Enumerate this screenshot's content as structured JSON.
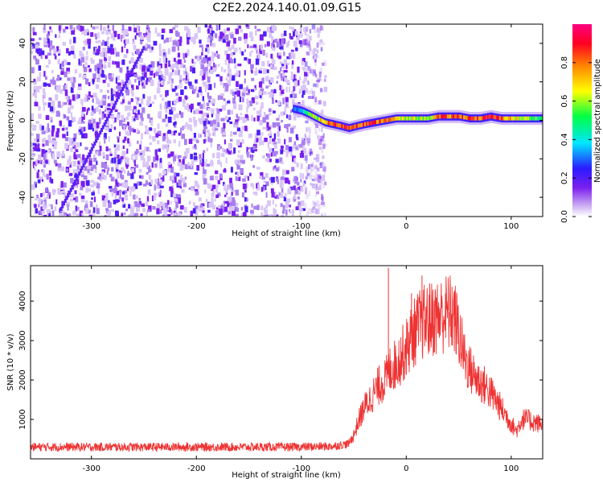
{
  "title": "C2E2.2024.140.01.09.G15",
  "chart_data": [
    {
      "type": "heatmap",
      "xlabel": "Height of straight line (km)",
      "ylabel": "Frequency (Hz)",
      "xlim": [
        -358,
        130
      ],
      "ylim": [
        -50,
        50
      ],
      "xticks": [
        -300,
        -200,
        -100,
        0,
        100
      ],
      "yticks": [
        -40,
        -20,
        0,
        20,
        40
      ],
      "colorbar": {
        "label": "Normalized spectral amplitude",
        "range": [
          0.0,
          1.0
        ],
        "ticks": [
          0.0,
          0.2,
          0.4,
          0.6,
          0.8
        ],
        "colors": [
          "#ffffff",
          "#c9a8f2",
          "#7b1ff0",
          "#2a1bff",
          "#00e5ff",
          "#00ff44",
          "#ffff00",
          "#ff8800",
          "#ff0022",
          "#ff0080"
        ]
      },
      "noise_region_x": [
        -358,
        -78
      ],
      "signal_track": {
        "x": [
          -108,
          -100,
          -92,
          -85,
          -78,
          -70,
          -62,
          -55,
          -48,
          -40,
          -30,
          -20,
          -10,
          0,
          10,
          20,
          30,
          40,
          50,
          60,
          70,
          80,
          90,
          100,
          110,
          120,
          130
        ],
        "y": [
          6,
          5,
          3,
          1,
          -1,
          -2,
          -3,
          -4,
          -3,
          -2,
          -1,
          0,
          1,
          1,
          1,
          1,
          2,
          2,
          2,
          1,
          1,
          2,
          1,
          1,
          1,
          1,
          1
        ],
        "amplitude": [
          0.3,
          0.35,
          0.55,
          0.62,
          0.75,
          0.82,
          0.88,
          0.85,
          0.9,
          0.86,
          0.82,
          0.85,
          0.65,
          0.6,
          0.62,
          0.6,
          0.78,
          0.8,
          0.82,
          0.85,
          0.82,
          0.86,
          0.8,
          0.7,
          0.6,
          0.55,
          0.5
        ]
      }
    },
    {
      "type": "line",
      "xlabel": "Height of straight line (km)",
      "ylabel": "SNR (10 * v/v)",
      "xlim": [
        -358,
        130
      ],
      "ylim": [
        0,
        4900
      ],
      "xticks": [
        -300,
        -200,
        -100,
        0,
        100
      ],
      "yticks": [
        1000,
        2000,
        3000,
        4000
      ],
      "color": "#ee3333",
      "series": [
        {
          "x": [
            -358,
            -300,
            -250,
            -200,
            -150,
            -100,
            -70,
            -55,
            -50,
            -45,
            -40,
            -35,
            -30,
            -25,
            -20,
            -15,
            -10,
            -5,
            0,
            5,
            10,
            15,
            20,
            25,
            30,
            35,
            40,
            45,
            50,
            55,
            60,
            65,
            70,
            75,
            80,
            85,
            90,
            95,
            100,
            105,
            110,
            115,
            120,
            125,
            130
          ],
          "y": [
            300,
            300,
            300,
            300,
            300,
            300,
            320,
            380,
            600,
            1000,
            1300,
            1500,
            1700,
            1900,
            2000,
            2300,
            2400,
            2600,
            2800,
            3100,
            3300,
            3450,
            3500,
            3550,
            3600,
            3650,
            3700,
            3650,
            3200,
            2600,
            2300,
            2100,
            1950,
            1850,
            1700,
            1500,
            1300,
            1100,
            900,
            700,
            1000,
            1000,
            950,
            900,
            900
          ],
          "spikes": [
            {
              "x": -17,
              "y": 4850
            },
            {
              "x": 15,
              "y": 4650
            },
            {
              "x": 5,
              "y": 4200
            },
            {
              "x": 45,
              "y": 4050
            }
          ]
        }
      ]
    }
  ]
}
